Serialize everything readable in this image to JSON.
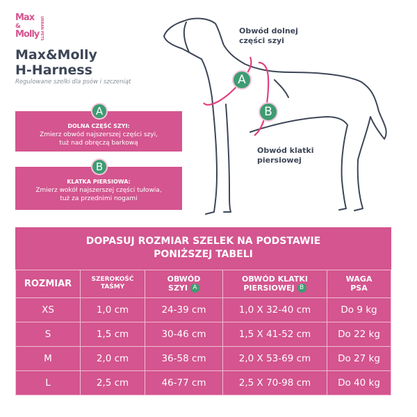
{
  "logo": {
    "line1": "Max",
    "line2": "Molly",
    "tag": "URBAN PETS"
  },
  "header": {
    "title_line1": "Max&Molly",
    "title_line2": "H-Harness",
    "subtitle": "Regulowane szelki dla psów i szczeniąt"
  },
  "measures": [
    {
      "letter": "A",
      "heading": "DOLNA CZĘŚĆ SZYI:",
      "line1": "Zmierz obwód najszerszej części szyi,",
      "line2": "tuż nad obręczą barkową"
    },
    {
      "letter": "B",
      "heading": "KLATKA PIERSIOWA:",
      "line1": "Zmierz wokół najszerszej części tułowia,",
      "line2": "tuż za przednimi nogami"
    }
  ],
  "diagram": {
    "neck_label_1": "Obwód dolnej",
    "neck_label_2": "części szyi",
    "chest_label_1": "Obwód klatki",
    "chest_label_2": "piersiowej",
    "marker_a": "A",
    "marker_b": "B"
  },
  "table": {
    "title_1": "DOPASUJ ROZMIAR SZELEK NA PODSTAWIE",
    "title_2": "PONIŻSZEJ TABELI",
    "headers": {
      "size": "ROZMIAR",
      "width_1": "SZEROKOŚĆ",
      "width_2": "TAŚMY",
      "neck_1": "OBWÓD",
      "neck_2": "SZYI",
      "neck_mark": "A",
      "chest_1": "OBWÓD KLATKI",
      "chest_2": "PIERSIOWEJ",
      "chest_mark": "B",
      "weight_1": "WAGA",
      "weight_2": "PSA"
    },
    "rows": [
      [
        "XS",
        "1,0 cm",
        "24-39 cm",
        "1,0 X 32-40 cm",
        "Do 9 kg"
      ],
      [
        "S",
        "1,5 cm",
        "30-46 cm",
        "1,5 X 41-52 cm",
        "Do 22 kg"
      ],
      [
        "M",
        "2,0 cm",
        "36-58 cm",
        "2,0 X 53-69 cm",
        "Do 27 kg"
      ],
      [
        "L",
        "2,5 cm",
        "46-77 cm",
        "2,5 X 70-98 cm",
        "Do 40 kg"
      ]
    ]
  },
  "colors": {
    "pink": "#d4558f",
    "green": "#3e9c72",
    "dark": "#3d4657"
  }
}
